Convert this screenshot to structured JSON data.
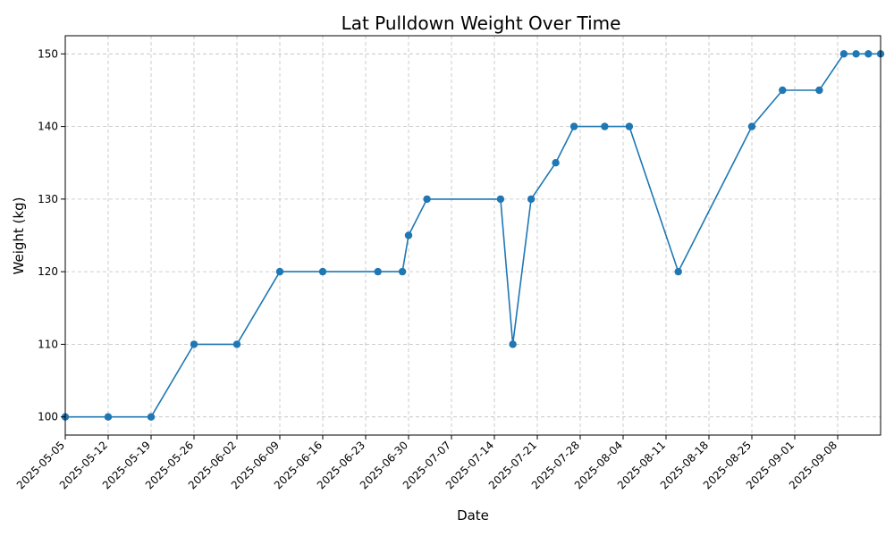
{
  "chart_data": {
    "type": "line",
    "title": "Lat Pulldown Weight Over Time",
    "xlabel": "Date",
    "ylabel": "Weight (kg)",
    "xlim": [
      "2025-05-05",
      "2025-09-15"
    ],
    "ylim": [
      97.5,
      152.5
    ],
    "grid": true,
    "x_ticks": [
      "2025-05-05",
      "2025-05-12",
      "2025-05-19",
      "2025-05-26",
      "2025-06-02",
      "2025-06-09",
      "2025-06-16",
      "2025-06-23",
      "2025-06-30",
      "2025-07-07",
      "2025-07-14",
      "2025-07-21",
      "2025-07-28",
      "2025-08-04",
      "2025-08-11",
      "2025-08-18",
      "2025-08-25",
      "2025-09-01",
      "2025-09-08"
    ],
    "y_ticks": [
      100,
      110,
      120,
      130,
      140,
      150
    ],
    "color": "#1f77b4",
    "series": [
      {
        "x": [
          "2025-05-05",
          "2025-05-12",
          "2025-05-19",
          "2025-05-26",
          "2025-06-02",
          "2025-06-09",
          "2025-06-16",
          "2025-06-25",
          "2025-06-29",
          "2025-06-30",
          "2025-07-03",
          "2025-07-15",
          "2025-07-17",
          "2025-07-20",
          "2025-07-24",
          "2025-07-27",
          "2025-08-01",
          "2025-08-05",
          "2025-08-13",
          "2025-08-25",
          "2025-08-30",
          "2025-09-05",
          "2025-09-09",
          "2025-09-11",
          "2025-09-13",
          "2025-09-15"
        ],
        "y": [
          100,
          100,
          100,
          110,
          110,
          120,
          120,
          120,
          120,
          125,
          130,
          130,
          110,
          130,
          135,
          140,
          140,
          140,
          120,
          140,
          145,
          145,
          150,
          150,
          150,
          150
        ]
      }
    ]
  }
}
